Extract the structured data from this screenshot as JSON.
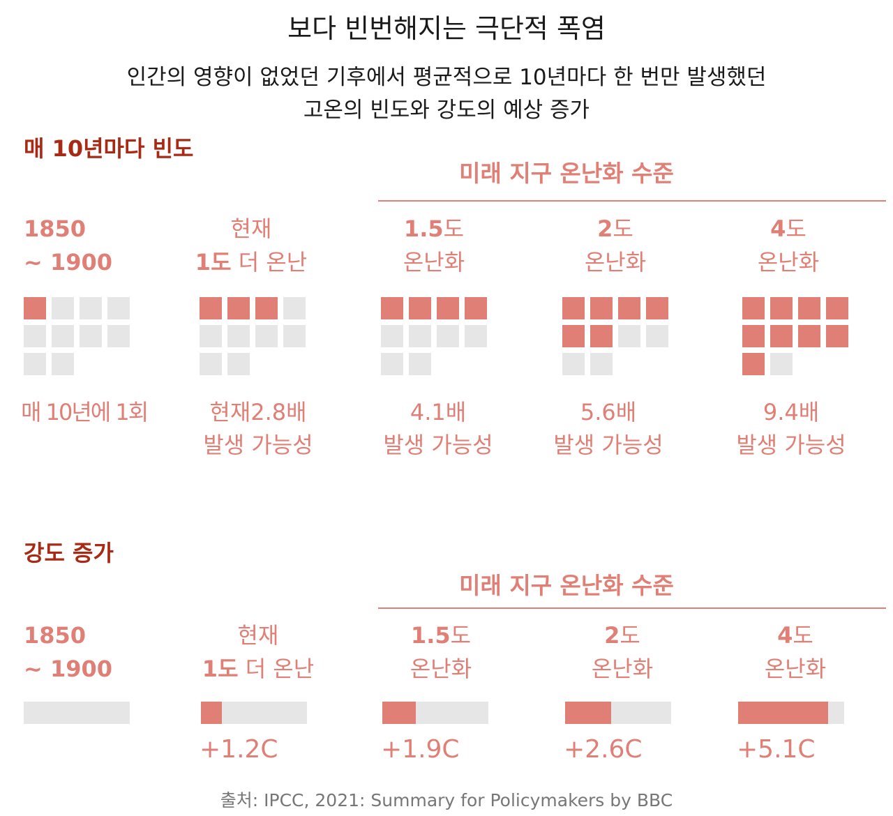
{
  "title": "보다 빈번해지는 극단적 폭염",
  "subtitle_line1": "인간의 영향이 없었던 기후에서 평균적으로 10년마다 한 번만 발생했던",
  "subtitle_line2": "고온의 빈도와 강도의 예상 증가",
  "source": "출처: IPCC, 2021: Summary for Policymakers by BBC",
  "colors": {
    "accent": "#e07f75",
    "section_heading": "#a82a14",
    "inactive": "#e6e6e6",
    "text": "#1a1a1a",
    "source": "#777777"
  },
  "frequency": {
    "heading": "매 10년마다 빈도",
    "future_heading": "미래 지구 온난화 수준",
    "columns": [
      {
        "label_num": "1850",
        "label_unit": "",
        "label_rest": "~ 1900",
        "note_line1": "매 10년에 1회",
        "note_line2": ""
      },
      {
        "label_num": "현재",
        "label_unit": "",
        "label_rest_num": "1도",
        "label_rest": " 더 온난",
        "note_line1": "현재2.8배",
        "note_line2": "발생 가능성"
      },
      {
        "label_num": "1.5",
        "label_unit": "도",
        "label_rest": "온난화",
        "note_line1": "4.1배",
        "note_line2": "발생 가능성"
      },
      {
        "label_num": "2",
        "label_unit": "도",
        "label_rest": "온난화",
        "note_line1": "5.6배",
        "note_line2": "발생 가능성"
      },
      {
        "label_num": "4",
        "label_unit": "도",
        "label_rest": "온난화",
        "note_line1": "9.4배",
        "note_line2": "발생 가능성"
      }
    ]
  },
  "intensity": {
    "heading": "강도 증가",
    "future_heading": "미래 지구 온난화 수준",
    "columns": [
      {
        "label_num": "1850",
        "label_unit": "",
        "label_rest": "~ 1900",
        "value_label": ""
      },
      {
        "label_num": "현재",
        "label_unit": "",
        "label_rest_num": "1도",
        "label_rest": " 더 온난",
        "value_label": "+1.2C"
      },
      {
        "label_num": "1.5",
        "label_unit": "도",
        "label_rest": "온난화",
        "value_label": "+1.9C"
      },
      {
        "label_num": "2",
        "label_unit": "도",
        "label_rest": "온난화",
        "value_label": "+2.6C"
      },
      {
        "label_num": "4",
        "label_unit": "도",
        "label_rest": "온난화",
        "value_label": "+5.1C"
      }
    ]
  },
  "chart_data": [
    {
      "type": "bar",
      "title": "매 10년마다 빈도",
      "categories": [
        "1850 ~ 1900",
        "현재 1도 더 온난",
        "1.5도 온난화",
        "2도 온난화",
        "4도 온난화"
      ],
      "values": [
        1,
        2.8,
        4.1,
        5.6,
        9.4
      ],
      "grid_total": 10,
      "filled_squares": [
        1,
        3,
        4,
        6,
        9
      ]
    },
    {
      "type": "bar",
      "title": "강도 증가",
      "categories": [
        "1850 ~ 1900",
        "현재 1도 더 온난",
        "1.5도 온난화",
        "2도 온난화",
        "4도 온난화"
      ],
      "values": [
        0,
        1.2,
        1.9,
        2.6,
        5.1
      ],
      "value_labels": [
        "",
        "+1.2C",
        "+1.9C",
        "+2.6C",
        "+5.1C"
      ],
      "xlim": [
        0,
        6
      ],
      "orientation": "horizontal"
    }
  ]
}
